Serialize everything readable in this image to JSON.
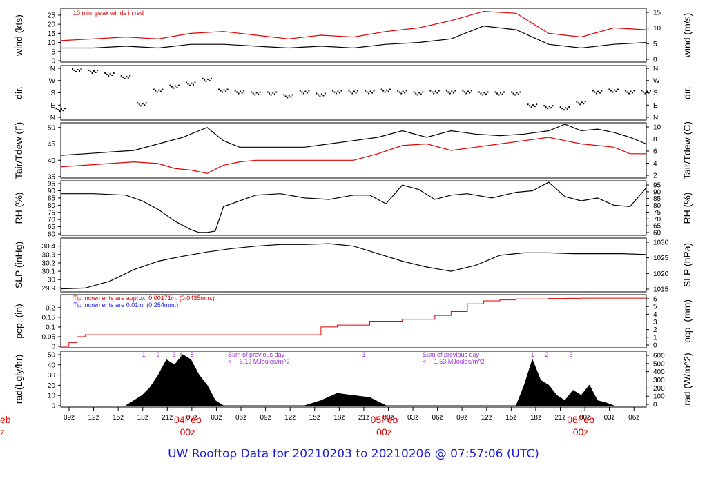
{
  "title": "UW Rooftop Data for 20210203  to  20210206 @ 07:57:06  (UTC)",
  "colors": {
    "red": "#e00000",
    "blue": "#1a1aee",
    "purple": "#9a30d8",
    "black": "#000000"
  },
  "x_axis": {
    "hour_ticks": [
      "09z",
      "12z",
      "15z",
      "18z",
      "21z",
      "00z",
      "03z",
      "06z",
      "09z",
      "12z",
      "15z",
      "18z",
      "21z",
      "00z",
      "03z",
      "06z",
      "09z",
      "12z",
      "15z",
      "18z",
      "21z",
      "00z",
      "03z",
      "06z"
    ],
    "day_labels": [
      {
        "date": "04Feb",
        "time": "00z",
        "at_tick": 5
      },
      {
        "date": "05Feb",
        "time": "00z",
        "at_tick": 13
      },
      {
        "date": "06Feb",
        "time": "00z",
        "at_tick": 21
      }
    ],
    "cut_label_date": "eb",
    "cut_label_time": "z"
  },
  "chart_data": [
    {
      "type": "line",
      "id": "wind",
      "left_label": "wind (kts)",
      "right_label": "wind (m/s)",
      "left_ticks": [
        0,
        5,
        10,
        15,
        20,
        25
      ],
      "left_range": [
        0,
        28
      ],
      "right_ticks": [
        0,
        5,
        10,
        15
      ],
      "annotation": "10 min. peak winds in red",
      "series": [
        {
          "color": "black",
          "x": [
            0,
            4,
            8,
            12,
            16,
            20,
            24,
            28,
            32,
            36,
            40,
            44,
            48,
            52,
            56,
            60,
            64,
            68,
            72
          ],
          "y": [
            7,
            7,
            8,
            7,
            9,
            9,
            8,
            7,
            8,
            7,
            9,
            10,
            12,
            19,
            17,
            9,
            7,
            9,
            10
          ]
        },
        {
          "color": "red",
          "x": [
            0,
            4,
            8,
            12,
            16,
            20,
            24,
            28,
            32,
            36,
            40,
            44,
            48,
            52,
            56,
            60,
            64,
            68,
            72
          ],
          "y": [
            11,
            12,
            13,
            12,
            15,
            16,
            14,
            12,
            14,
            13,
            16,
            18,
            22,
            27,
            26,
            15,
            13,
            18,
            17
          ]
        }
      ]
    },
    {
      "type": "scatter",
      "id": "dir",
      "left_label": "dir.",
      "right_label": "dir.",
      "left_ticks": [
        "N",
        "W",
        "S",
        "E",
        "N"
      ],
      "right_ticks": [
        "N",
        "W",
        "S",
        "E",
        "N"
      ],
      "series": [
        {
          "color": "black",
          "x": [
            0,
            2,
            4,
            6,
            8,
            10,
            12,
            14,
            16,
            18,
            20,
            22,
            24,
            26,
            28,
            30,
            32,
            34,
            36,
            38,
            40,
            42,
            44,
            46,
            48,
            50,
            52,
            54,
            56,
            58,
            60,
            62,
            64,
            66,
            68,
            70,
            72
          ],
          "y": [
            60,
            350,
            340,
            320,
            300,
            100,
            200,
            230,
            250,
            280,
            200,
            190,
            180,
            180,
            160,
            190,
            170,
            190,
            190,
            190,
            200,
            190,
            180,
            190,
            190,
            190,
            180,
            180,
            180,
            90,
            80,
            70,
            110,
            190,
            200,
            190,
            190
          ]
        }
      ]
    },
    {
      "type": "line",
      "id": "temp",
      "left_label": "Tair/Tdew (F)",
      "right_label": "Tair/Tdew (C)",
      "left_ticks": [
        35,
        40,
        45,
        50
      ],
      "left_range": [
        35,
        51
      ],
      "right_ticks": [
        2,
        4,
        6,
        8,
        10
      ],
      "series": [
        {
          "color": "black",
          "x": [
            0,
            3,
            6,
            9,
            12,
            15,
            17,
            18,
            20,
            22,
            24,
            28,
            30,
            33,
            36,
            39,
            42,
            45,
            48,
            51,
            54,
            57,
            60,
            62,
            64,
            66,
            68,
            70,
            72
          ],
          "y": [
            41.5,
            42,
            42.5,
            43,
            45,
            47,
            49,
            50,
            46,
            44,
            44,
            44,
            44,
            45,
            46,
            47,
            49,
            47,
            49,
            48,
            47.5,
            48,
            49,
            51,
            49,
            49.5,
            48.5,
            47,
            45
          ]
        },
        {
          "color": "red",
          "x": [
            0,
            3,
            6,
            9,
            12,
            14,
            16,
            17,
            18,
            20,
            22,
            24,
            28,
            30,
            33,
            36,
            39,
            42,
            45,
            48,
            51,
            54,
            57,
            60,
            62,
            64,
            66,
            68,
            70,
            72
          ],
          "y": [
            38,
            38.5,
            39,
            39.5,
            39,
            37.5,
            37,
            36.5,
            36,
            38.5,
            39.5,
            40,
            40,
            40,
            40,
            40,
            42,
            44.5,
            45,
            43,
            44,
            45,
            46,
            47,
            46,
            45,
            44.5,
            44,
            42,
            42
          ]
        }
      ]
    },
    {
      "type": "line",
      "id": "rh",
      "left_label": "RH (%)",
      "right_label": "RH (%)",
      "left_ticks": [
        60,
        65,
        70,
        75,
        80,
        85,
        90,
        95
      ],
      "left_range": [
        60,
        96
      ],
      "right_ticks": [
        60,
        65,
        70,
        75,
        80,
        85,
        90,
        95
      ],
      "series": [
        {
          "color": "black",
          "x": [
            0,
            4,
            8,
            10,
            12,
            14,
            16,
            17,
            18,
            19,
            20,
            22,
            24,
            27,
            30,
            33,
            36,
            38,
            40,
            42,
            44,
            46,
            48,
            50,
            53,
            56,
            58,
            60,
            62,
            64,
            66,
            68,
            70,
            72
          ],
          "y": [
            88,
            88,
            87,
            83,
            77,
            69,
            63,
            61,
            61,
            62,
            79,
            83,
            87,
            88,
            85,
            84,
            87,
            87,
            81,
            94,
            91,
            84,
            87,
            88,
            85,
            89,
            90,
            96,
            86,
            83,
            85,
            80,
            79,
            92
          ]
        }
      ]
    },
    {
      "type": "line",
      "id": "slp",
      "left_label": "SLP (inHg)",
      "right_label": "SLP (hPa)",
      "left_ticks": [
        29.9,
        30.0,
        30.1,
        30.2,
        30.3,
        30.4
      ],
      "left_range": [
        29.87,
        30.48
      ],
      "right_ticks": [
        1015,
        1020,
        1025,
        1030
      ],
      "series": [
        {
          "color": "black",
          "x": [
            0,
            3,
            6,
            9,
            12,
            15,
            18,
            21,
            24,
            27,
            30,
            33,
            36,
            39,
            42,
            45,
            48,
            51,
            54,
            57,
            60,
            63,
            66,
            69,
            72
          ],
          "y": [
            29.89,
            29.9,
            29.98,
            30.12,
            30.22,
            30.28,
            30.33,
            30.37,
            30.4,
            30.42,
            30.42,
            30.43,
            30.4,
            30.31,
            30.22,
            30.15,
            30.1,
            30.17,
            30.29,
            30.32,
            30.32,
            30.31,
            30.31,
            30.31,
            30.3
          ]
        }
      ]
    },
    {
      "type": "line",
      "id": "pcp",
      "left_label": "pcp. (in)",
      "right_label": "pcp. (mm)",
      "left_ticks": [
        0.0,
        0.05,
        0.1,
        0.15,
        0.2
      ],
      "left_range": [
        0,
        0.26
      ],
      "right_ticks": [
        0,
        1,
        2,
        3,
        4,
        5,
        6
      ],
      "annotations": [
        {
          "text": "Tip increments are approx. 0.00171in. (0.0435mm.)",
          "color": "red"
        },
        {
          "text": "Tip increments are 0.01in. (0.254mm.)",
          "color": "blue"
        }
      ],
      "series": [
        {
          "color": "red",
          "x": [
            0,
            1,
            2,
            3,
            30,
            32,
            34,
            38,
            42,
            46,
            48,
            50,
            52,
            54,
            56,
            58,
            60,
            62,
            64,
            66,
            72
          ],
          "y": [
            0,
            0.02,
            0.05,
            0.06,
            0.06,
            0.1,
            0.11,
            0.13,
            0.14,
            0.16,
            0.18,
            0.22,
            0.235,
            0.24,
            0.245,
            0.245,
            0.247,
            0.248,
            0.249,
            0.249,
            0.249
          ]
        }
      ]
    },
    {
      "type": "area",
      "id": "rad",
      "left_label": "rad(Lgly/hr)",
      "right_label": "rad (W/m^2)",
      "left_ticks": [
        0,
        10,
        20,
        30,
        40,
        50
      ],
      "left_range": [
        0,
        52
      ],
      "right_ticks": [
        0,
        100,
        200,
        300,
        400,
        500,
        600
      ],
      "annotations": [
        {
          "text": "Sum of previous day",
          "color": "purple"
        },
        {
          "text": "<--- 6.12 MJoules/m^2",
          "color": "purple"
        },
        {
          "text": "Sum of previous day",
          "color": "purple"
        },
        {
          "text": "<--- 1.53 MJoules/m^2",
          "color": "purple"
        }
      ],
      "marker_labels": [
        "1",
        "2",
        "3",
        "4",
        "5",
        "6",
        "1",
        "1",
        "2",
        "3"
      ],
      "series": [
        {
          "color": "black",
          "x": [
            8,
            9,
            10,
            11,
            12,
            13,
            14,
            15,
            16,
            17,
            18,
            19,
            20,
            30,
            32,
            34,
            36,
            38,
            40,
            56,
            57,
            58,
            59,
            60,
            61,
            62,
            63,
            64,
            65,
            66,
            67,
            68
          ],
          "y": [
            0,
            5,
            10,
            18,
            30,
            45,
            40,
            50,
            45,
            30,
            20,
            5,
            0,
            0,
            5,
            12,
            10,
            8,
            0,
            0,
            20,
            45,
            25,
            20,
            10,
            5,
            15,
            10,
            20,
            5,
            3,
            0
          ]
        }
      ]
    }
  ]
}
